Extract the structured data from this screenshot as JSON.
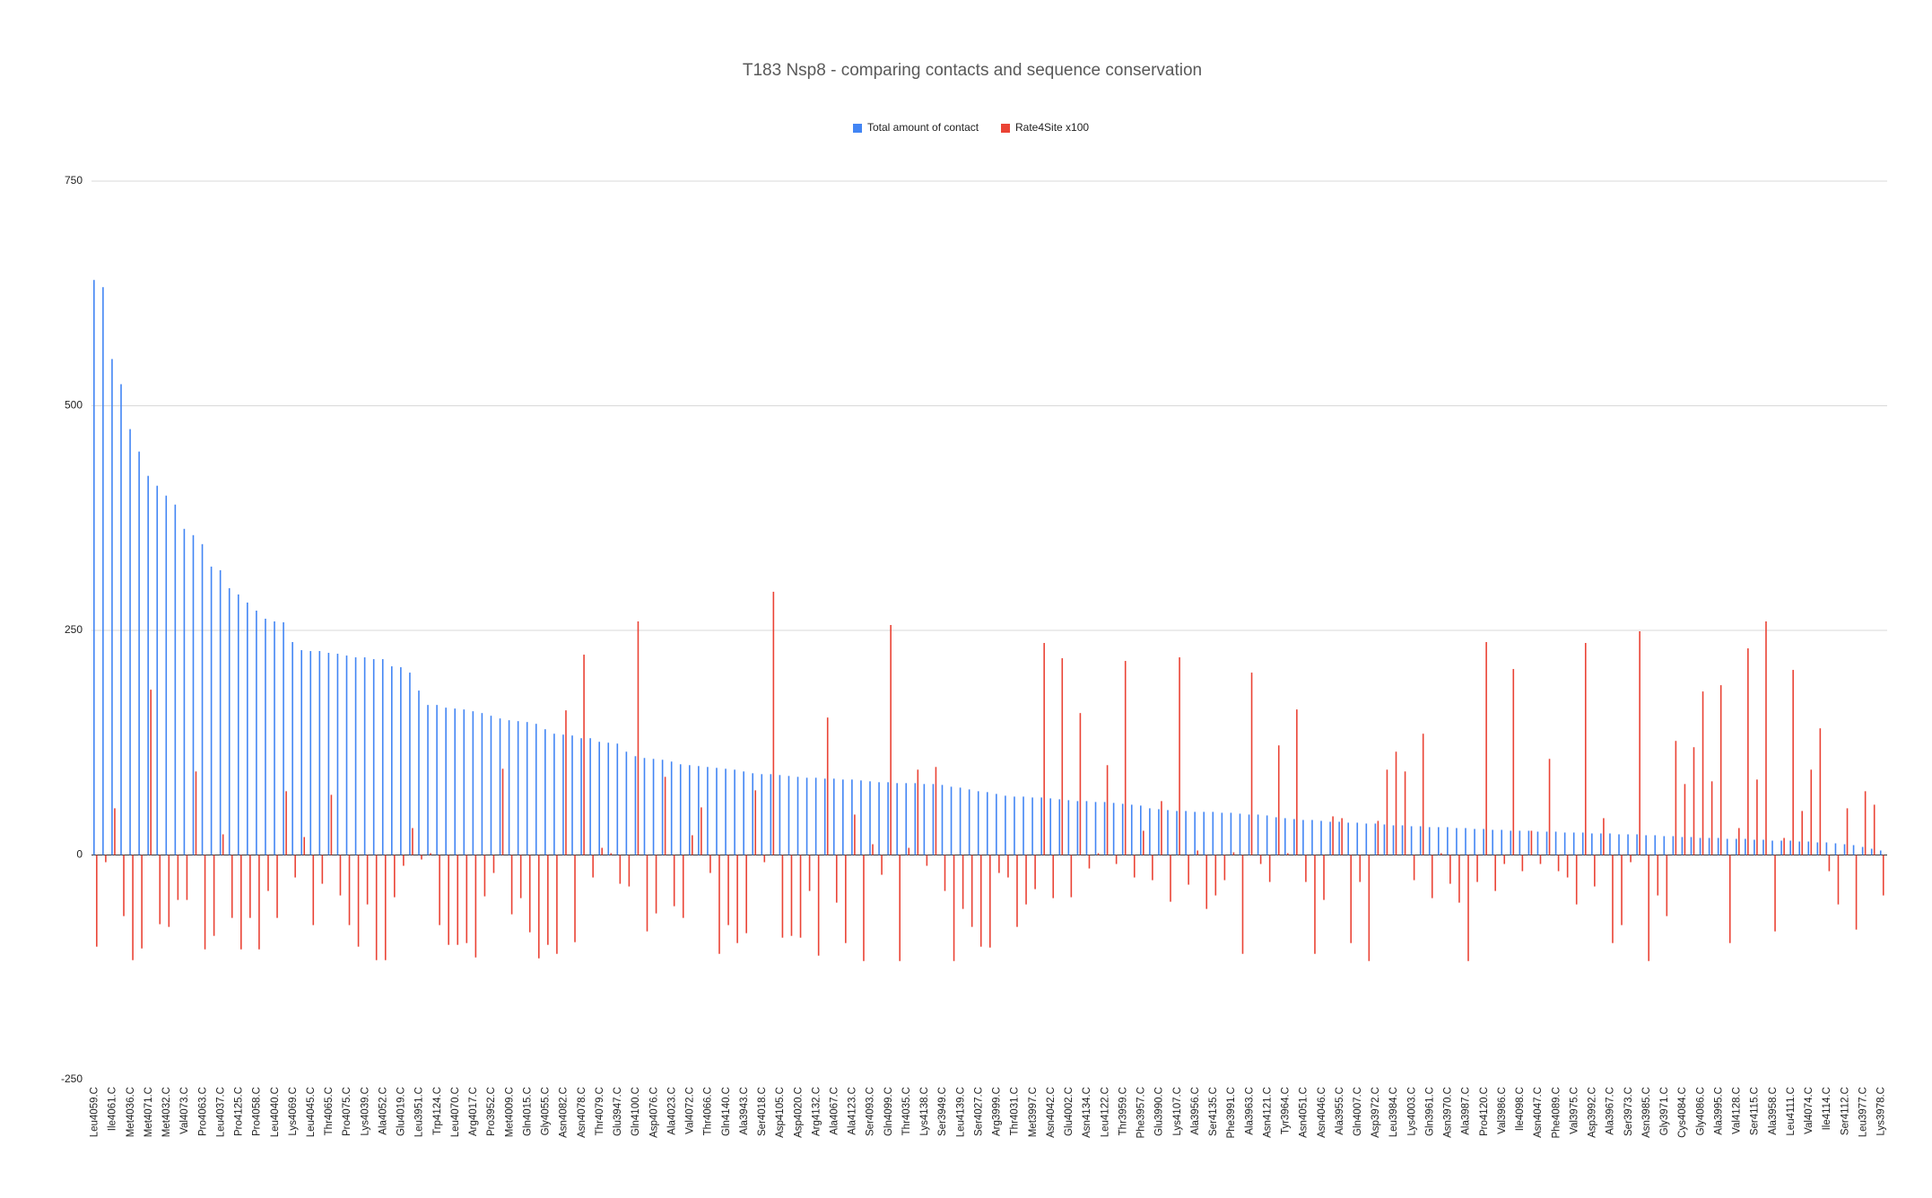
{
  "chart_data": {
    "type": "bar",
    "title": "T183 Nsp8 - comparing contacts and sequence conservation",
    "legend": "top",
    "grid": true,
    "ylim": [
      -250,
      750
    ],
    "yticks": [
      -250,
      0,
      250,
      500,
      750
    ],
    "categories": [
      "Leu4059.C",
      null,
      "Ile4061.C",
      null,
      "Met4036.C",
      null,
      "Met4071.C",
      null,
      "Met4032.C",
      null,
      "Val4073.C",
      null,
      "Pro4063.C",
      null,
      "Leu4037.C",
      null,
      "Pro4125.C",
      null,
      "Pro4058.C",
      null,
      "Leu4040.C",
      null,
      "Lys4069.C",
      null,
      "Leu4045.C",
      null,
      "Thr4065.C",
      null,
      "Pro4075.C",
      null,
      "Lys4039.C",
      null,
      "Ala4052.C",
      null,
      "Glu4019.C",
      null,
      "Leu3951.C",
      null,
      "Trp4124.C",
      null,
      "Leu4070.C",
      null,
      "Arg4017.C",
      null,
      "Pro3952.C",
      null,
      "Met4009.C",
      null,
      "Gln4015.C",
      null,
      "Gly4055.C",
      null,
      "Asn4082.C",
      null,
      "Asn4078.C",
      null,
      "Thr4079.C",
      null,
      "Glu3947.C",
      null,
      "Gln4100.C",
      null,
      "Asp4076.C",
      null,
      "Ala4023.C",
      null,
      "Val4072.C",
      null,
      "Thr4066.C",
      null,
      "Gln4140.C",
      null,
      "Ala3943.C",
      null,
      "Ser4018.C",
      null,
      "Asp4105.C",
      null,
      "Asp4020.C",
      null,
      "Arg4132.C",
      null,
      "Ala4067.C",
      null,
      "Ala4123.C",
      null,
      "Ser4093.C",
      null,
      "Gln4099.C",
      null,
      "Thr4035.C",
      null,
      "Lys4138.C",
      null,
      "Ser3949.C",
      null,
      "Leu4139.C",
      null,
      "Ser4027.C",
      null,
      "Arg3999.C",
      null,
      "Thr4031.C",
      null,
      "Met3997.C",
      null,
      "Asn4042.C",
      null,
      "Glu4002.C",
      null,
      "Asn4134.C",
      null,
      "Leu4122.C",
      null,
      "Thr3959.C",
      null,
      "Phe3957.C",
      null,
      "Glu3990.C",
      null,
      "Lys4107.C",
      null,
      "Ala3956.C",
      null,
      "Ser4135.C",
      null,
      "Phe3991.C",
      null,
      "Ala3963.C",
      null,
      "Asn4121.C",
      null,
      "Tyr3964.C",
      null,
      "Asn4051.C",
      null,
      "Asn4046.C",
      null,
      "Ala3955.C",
      null,
      "Gln4007.C",
      null,
      "Asp3972.C",
      null,
      "Leu3984.C",
      null,
      "Lys4003.C",
      null,
      "Gln3961.C",
      null,
      "Asn3970.C",
      null,
      "Ala3987.C",
      null,
      "Pro4120.C",
      null,
      "Val3986.C",
      null,
      "Ile4098.C",
      null,
      "Asn4047.C",
      null,
      "Phe4089.C",
      null,
      "Val3975.C",
      null,
      "Asp3992.C",
      null,
      "Ala3967.C",
      null,
      "Ser3973.C",
      null,
      "Asn3985.C",
      null,
      "Gly3971.C",
      null,
      "Cys4084.C",
      null,
      "Gly4086.C",
      null,
      "Ala3995.C",
      null,
      "Val4128.C",
      null,
      "Ser4115.C",
      null,
      "Ala3958.C",
      null,
      "Leu4111.C",
      null,
      "Val4074.C",
      null,
      "Ile4114.C",
      null,
      "Ser4112.C",
      null,
      "Leu3977.C",
      null,
      "Lys3978.C"
    ],
    "series": [
      {
        "name": "Total amount of contact",
        "color": "#4285f4",
        "values": [
          640,
          632,
          552,
          524,
          474,
          449,
          422,
          411,
          400,
          390,
          363,
          356,
          346,
          321,
          317,
          297,
          290,
          281,
          272,
          263,
          260,
          259,
          237,
          228,
          227,
          227,
          225,
          224,
          222,
          220,
          220,
          218,
          218,
          210,
          209,
          203,
          183,
          167,
          167,
          164,
          163,
          162,
          160,
          158,
          155,
          152,
          150,
          149,
          148,
          146,
          140,
          135,
          134,
          133,
          130,
          130,
          126,
          125,
          124,
          115,
          110,
          108,
          107,
          106,
          104,
          101,
          100,
          99,
          98,
          97,
          96,
          95,
          93,
          91,
          90,
          90,
          89,
          88,
          87,
          86,
          86,
          85,
          85,
          84,
          84,
          83,
          82,
          81,
          81,
          80,
          80,
          80,
          79,
          79,
          78,
          76,
          75,
          73,
          71,
          70,
          68,
          66,
          65,
          65,
          64,
          64,
          63,
          62,
          61,
          60,
          60,
          59,
          59,
          58,
          57,
          56,
          55,
          52,
          51,
          50,
          49,
          49,
          48,
          48,
          48,
          47,
          47,
          46,
          45,
          45,
          44,
          42,
          41,
          40,
          39,
          39,
          38,
          37,
          37,
          36,
          36,
          35,
          35,
          34,
          33,
          33,
          32,
          32,
          31,
          31,
          31,
          30,
          30,
          29,
          29,
          28,
          28,
          27,
          27,
          27,
          26,
          26,
          26,
          25,
          25,
          25,
          24,
          24,
          24,
          23,
          23,
          23,
          22,
          22,
          21,
          21,
          20,
          20,
          19,
          19,
          19,
          18,
          18,
          18,
          17,
          17,
          16,
          16,
          16,
          15,
          15,
          14,
          14,
          13,
          12,
          11,
          9,
          7,
          5
        ]
      },
      {
        "name": "Rate4Site x100",
        "color": "#ea4335",
        "values": [
          -102,
          -8,
          52,
          -68,
          -117,
          -104,
          184,
          -77,
          -80,
          -50,
          -50,
          93,
          -105,
          -90,
          23,
          -70,
          -105,
          -70,
          -105,
          -40,
          -70,
          71,
          -25,
          20,
          -78,
          -32,
          67,
          -45,
          -78,
          -102,
          -55,
          -117,
          -117,
          -47,
          -12,
          30,
          -5,
          2,
          -78,
          -100,
          -100,
          -98,
          -114,
          -46,
          -20,
          96,
          -66,
          -48,
          -86,
          -115,
          -100,
          -110,
          161,
          -97,
          223,
          -25,
          8,
          2,
          -32,
          -35,
          260,
          -85,
          -65,
          87,
          -57,
          -70,
          22,
          53,
          -20,
          -110,
          -78,
          -98,
          -87,
          72,
          -8,
          293,
          -92,
          -90,
          -92,
          -40,
          -112,
          153,
          -53,
          -98,
          45,
          -118,
          12,
          -22,
          256,
          -118,
          8,
          95,
          -12,
          98,
          -40,
          -118,
          -60,
          -80,
          -102,
          -103,
          -20,
          -25,
          -80,
          -55,
          -38,
          236,
          -48,
          219,
          -47,
          158,
          -15,
          2,
          100,
          -10,
          216,
          -25,
          27,
          -28,
          60,
          -52,
          220,
          -33,
          5,
          -60,
          -45,
          -28,
          3,
          -110,
          203,
          -10,
          -30,
          122,
          2,
          162,
          -30,
          -110,
          -50,
          43,
          41,
          -98,
          -30,
          -118,
          38,
          95,
          115,
          93,
          -28,
          135,
          -48,
          2,
          -32,
          -53,
          -118,
          -30,
          237,
          -40,
          -10,
          207,
          -18,
          27,
          -10,
          107,
          -18,
          -25,
          -55,
          236,
          -35,
          41,
          -98,
          -78,
          -8,
          249,
          -118,
          -45,
          -68,
          127,
          79,
          120,
          182,
          82,
          189,
          -98,
          30,
          230,
          84,
          260,
          -85,
          19,
          206,
          49,
          95,
          141,
          -18,
          -55,
          52,
          -83,
          71,
          56,
          -45
        ]
      }
    ]
  }
}
